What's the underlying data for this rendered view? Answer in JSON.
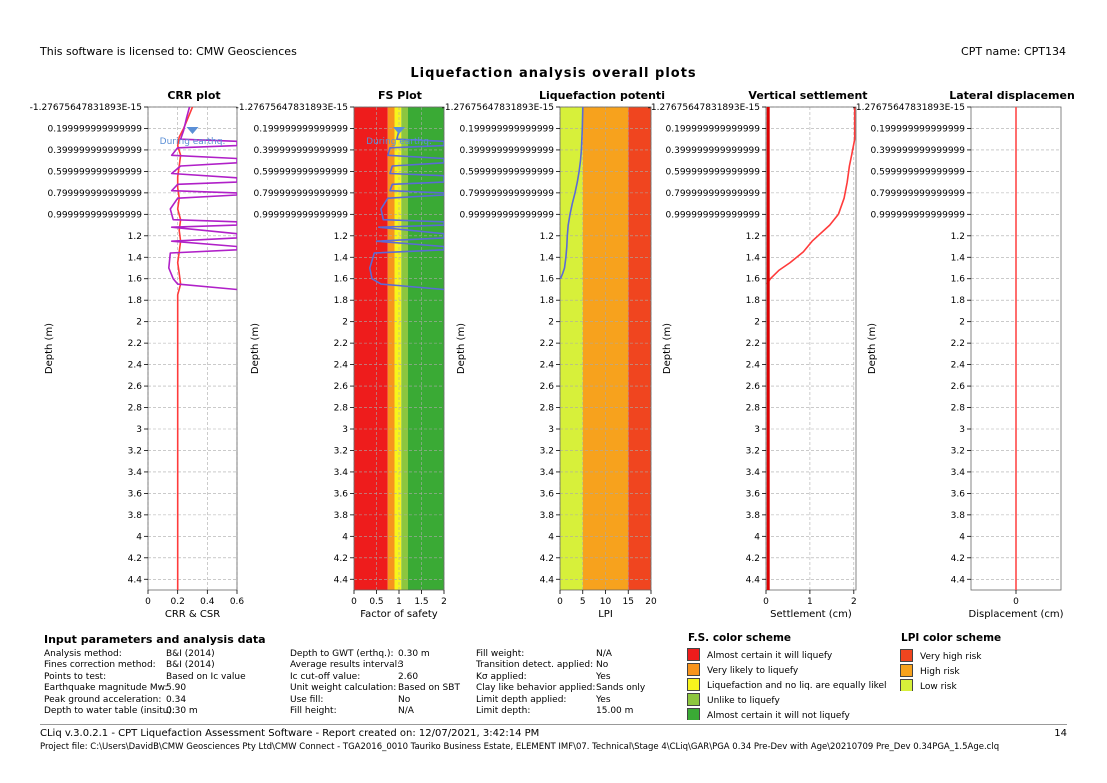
{
  "header": {
    "license_text": "This software is licensed to: CMW Geosciences",
    "cpt_name": "CPT name: CPT134"
  },
  "main_title": "Liquefaction analysis overall plots",
  "chart_data": [
    {
      "type": "line",
      "title": "CRR plot",
      "xlabel": "CRR & CSR",
      "ylabel": "Depth (m)",
      "xlim": [
        0,
        0.6
      ],
      "x_tick_labels": [
        "0",
        "0.2",
        "0.4",
        "0.6"
      ],
      "ylim": [
        0,
        4.5
      ],
      "y_tick_labels": [
        "-1.27675647831893E-15",
        "0.199999999999999",
        "0.399999999999999",
        "0.599999999999999",
        "0.799999999999999",
        "0.999999999999999",
        "1.2",
        "1.4",
        "1.6",
        "1.8",
        "2",
        "2.2",
        "2.4",
        "2.6",
        "2.8",
        "3",
        "3.2",
        "3.4",
        "3.6",
        "3.8",
        "4",
        "4.2",
        "4.4"
      ],
      "annotations": [
        {
          "text": "During earthq.",
          "x": 0.3,
          "y": 0.28
        }
      ],
      "series": [
        {
          "color": "#ff3b3b",
          "points": [
            [
              0.3,
              0.0
            ],
            [
              0.27,
              0.1
            ],
            [
              0.24,
              0.2
            ],
            [
              0.21,
              0.28
            ],
            [
              0.2,
              0.36
            ],
            [
              0.22,
              0.45
            ],
            [
              0.21,
              0.55
            ],
            [
              0.2,
              0.65
            ],
            [
              0.2,
              0.75
            ],
            [
              0.21,
              0.85
            ],
            [
              0.2,
              0.95
            ],
            [
              0.22,
              1.05
            ],
            [
              0.21,
              1.15
            ],
            [
              0.22,
              1.25
            ],
            [
              0.21,
              1.35
            ],
            [
              0.2,
              1.45
            ],
            [
              0.21,
              1.55
            ],
            [
              0.22,
              1.65
            ],
            [
              0.2,
              1.75
            ],
            [
              0.2,
              2.0
            ],
            [
              0.2,
              2.5
            ],
            [
              0.2,
              3.0
            ],
            [
              0.2,
              3.5
            ],
            [
              0.2,
              4.0
            ],
            [
              0.2,
              4.5
            ]
          ]
        },
        {
          "color": "#b020c8",
          "points": [
            [
              0.28,
              0.0
            ],
            [
              0.26,
              0.1
            ],
            [
              0.24,
              0.22
            ],
            [
              0.22,
              0.3
            ],
            [
              0.6,
              0.32
            ],
            [
              0.6,
              0.36
            ],
            [
              0.2,
              0.38
            ],
            [
              0.16,
              0.45
            ],
            [
              0.6,
              0.48
            ],
            [
              0.6,
              0.52
            ],
            [
              0.22,
              0.55
            ],
            [
              0.16,
              0.62
            ],
            [
              0.6,
              0.66
            ],
            [
              0.6,
              0.7
            ],
            [
              0.2,
              0.72
            ],
            [
              0.16,
              0.78
            ],
            [
              0.6,
              0.8
            ],
            [
              0.6,
              0.82
            ],
            [
              0.2,
              0.85
            ],
            [
              0.15,
              0.95
            ],
            [
              0.17,
              1.05
            ],
            [
              0.6,
              1.07
            ],
            [
              0.6,
              1.1
            ],
            [
              0.16,
              1.12
            ],
            [
              0.6,
              1.18
            ],
            [
              0.6,
              1.22
            ],
            [
              0.16,
              1.25
            ],
            [
              0.6,
              1.3
            ],
            [
              0.6,
              1.33
            ],
            [
              0.15,
              1.36
            ],
            [
              0.14,
              1.5
            ],
            [
              0.17,
              1.6
            ],
            [
              0.2,
              1.65
            ],
            [
              0.6,
              1.7
            ]
          ]
        }
      ]
    },
    {
      "type": "line",
      "title": "FS Plot",
      "xlabel": "Factor of safety",
      "ylabel": "Depth (m)",
      "xlim": [
        0,
        2
      ],
      "x_tick_labels": [
        "0",
        "0.5",
        "1",
        "1.5",
        "2"
      ],
      "ylim": [
        0,
        4.5
      ],
      "y_tick_labels": [
        "-1.27675647831893E-15",
        "0.199999999999999",
        "0.399999999999999",
        "0.599999999999999",
        "0.799999999999999",
        "0.999999999999999",
        "1.2",
        "1.4",
        "1.6",
        "1.8",
        "2",
        "2.2",
        "2.4",
        "2.6",
        "2.8",
        "3",
        "3.2",
        "3.4",
        "3.6",
        "3.8",
        "4",
        "4.2",
        "4.4"
      ],
      "background_bands": [
        {
          "from": 0,
          "to": 0.75,
          "color": "#ee1c1c"
        },
        {
          "from": 0.75,
          "to": 0.9,
          "color": "#f7941d"
        },
        {
          "from": 0.9,
          "to": 1.05,
          "color": "#f7f41d"
        },
        {
          "from": 1.05,
          "to": 1.2,
          "color": "#8dc63f"
        },
        {
          "from": 1.2,
          "to": 2.0,
          "color": "#3aaa35"
        }
      ],
      "annotations": [
        {
          "text": "During earthq.",
          "x": 1.0,
          "y": 0.28
        }
      ],
      "series": [
        {
          "color": "#5b6bd6",
          "points": [
            [
              1.0,
              0.22
            ],
            [
              0.95,
              0.3
            ],
            [
              2.0,
              0.32
            ],
            [
              2.0,
              0.36
            ],
            [
              0.8,
              0.38
            ],
            [
              0.75,
              0.45
            ],
            [
              2.0,
              0.48
            ],
            [
              2.0,
              0.52
            ],
            [
              0.85,
              0.55
            ],
            [
              0.8,
              0.62
            ],
            [
              2.0,
              0.64
            ],
            [
              2.0,
              0.7
            ],
            [
              0.85,
              0.72
            ],
            [
              0.8,
              0.78
            ],
            [
              2.0,
              0.8
            ],
            [
              2.0,
              0.82
            ],
            [
              0.75,
              0.85
            ],
            [
              0.6,
              0.95
            ],
            [
              0.65,
              1.05
            ],
            [
              2.0,
              1.07
            ],
            [
              2.0,
              1.1
            ],
            [
              0.55,
              1.12
            ],
            [
              2.0,
              1.18
            ],
            [
              2.0,
              1.22
            ],
            [
              0.5,
              1.25
            ],
            [
              2.0,
              1.3
            ],
            [
              2.0,
              1.33
            ],
            [
              0.45,
              1.36
            ],
            [
              0.35,
              1.5
            ],
            [
              0.4,
              1.6
            ],
            [
              0.6,
              1.65
            ],
            [
              2.0,
              1.7
            ]
          ]
        }
      ]
    },
    {
      "type": "line",
      "title": "Liquefaction potenti",
      "xlabel": "LPI",
      "ylabel": "Depth (m)",
      "xlim": [
        0,
        20
      ],
      "x_tick_labels": [
        "0",
        "5",
        "10",
        "15",
        "20"
      ],
      "ylim": [
        0,
        4.5
      ],
      "y_tick_labels": [
        "-1.27675647831893E-15",
        "0.199999999999999",
        "0.399999999999999",
        "0.599999999999999",
        "0.799999999999999",
        "0.999999999999999",
        "1.2",
        "1.4",
        "1.6",
        "1.8",
        "2",
        "2.2",
        "2.4",
        "2.6",
        "2.8",
        "3",
        "3.2",
        "3.4",
        "3.6",
        "3.8",
        "4",
        "4.2",
        "4.4"
      ],
      "background_bands": [
        {
          "from": 0,
          "to": 5,
          "color": "#d7f03a"
        },
        {
          "from": 5,
          "to": 15,
          "color": "#f7a21d"
        },
        {
          "from": 15,
          "to": 20,
          "color": "#f0451f"
        }
      ],
      "series": [
        {
          "color": "#5b6bd6",
          "points": [
            [
              5.0,
              0.0
            ],
            [
              4.9,
              0.2
            ],
            [
              4.7,
              0.4
            ],
            [
              4.5,
              0.5
            ],
            [
              4.2,
              0.6
            ],
            [
              3.8,
              0.7
            ],
            [
              3.3,
              0.8
            ],
            [
              2.7,
              0.9
            ],
            [
              2.2,
              1.0
            ],
            [
              1.8,
              1.1
            ],
            [
              1.6,
              1.2
            ],
            [
              1.5,
              1.3
            ],
            [
              1.3,
              1.4
            ],
            [
              1.0,
              1.5
            ],
            [
              0.6,
              1.55
            ],
            [
              0.1,
              1.6
            ]
          ]
        }
      ]
    },
    {
      "type": "line",
      "title": "Vertical settlement",
      "xlabel": "Settlement (cm)",
      "ylabel": "Depth (m)",
      "xlim": [
        0,
        2.05
      ],
      "x_tick_labels": [
        "0",
        "1",
        "2"
      ],
      "ylim": [
        0,
        4.5
      ],
      "y_tick_labels": [
        "-1.27675647831893E-15",
        "0.199999999999999",
        "0.399999999999999",
        "0.599999999999999",
        "0.799999999999999",
        "0.999999999999999",
        "1.2",
        "1.4",
        "1.6",
        "1.8",
        "2",
        "2.2",
        "2.4",
        "2.6",
        "2.8",
        "3",
        "3.2",
        "3.4",
        "3.6",
        "3.8",
        "4",
        "4.2",
        "4.4"
      ],
      "series": [
        {
          "color": "#ff3b3b",
          "points": [
            [
              2.02,
              0.0
            ],
            [
              2.02,
              0.3
            ],
            [
              1.95,
              0.45
            ],
            [
              1.9,
              0.55
            ],
            [
              1.85,
              0.7
            ],
            [
              1.78,
              0.85
            ],
            [
              1.65,
              1.0
            ],
            [
              1.45,
              1.1
            ],
            [
              1.05,
              1.25
            ],
            [
              0.85,
              1.35
            ],
            [
              0.55,
              1.45
            ],
            [
              0.3,
              1.52
            ],
            [
              0.1,
              1.6
            ],
            [
              0.02,
              1.65
            ]
          ]
        },
        {
          "color": "#dd0000",
          "points": [
            [
              0.05,
              0.0
            ],
            [
              0.05,
              4.5
            ]
          ]
        }
      ]
    },
    {
      "type": "line",
      "title": "Lateral displacemen",
      "xlabel": "Displacement (cm)",
      "ylabel": "Depth (m)",
      "xlim": [
        -1,
        1
      ],
      "x_tick_labels": [
        "0"
      ],
      "ylim": [
        0,
        4.5
      ],
      "y_tick_labels": [
        "-1.27675647831893E-15",
        "0.199999999999999",
        "0.399999999999999",
        "0.599999999999999",
        "0.799999999999999",
        "0.999999999999999",
        "1.2",
        "1.4",
        "1.6",
        "1.8",
        "2",
        "2.2",
        "2.4",
        "2.6",
        "2.8",
        "3",
        "3.2",
        "3.4",
        "3.6",
        "3.8",
        "4",
        "4.2",
        "4.4"
      ],
      "series": [
        {
          "color": "#ff4a4a",
          "points": [
            [
              0,
              0
            ],
            [
              0,
              4.5
            ]
          ]
        }
      ]
    }
  ],
  "input_params": {
    "title": "Input parameters and analysis data",
    "col1": [
      {
        "label": "Analysis method:",
        "value": "B&I (2014)"
      },
      {
        "label": "Fines correction method:",
        "value": "B&I (2014)"
      },
      {
        "label": "Points to test:",
        "value": "Based on Ic value"
      },
      {
        "label": "Earthquake magnitude Mw:",
        "value": "5.90"
      },
      {
        "label": "Peak ground acceleration:",
        "value": "0.34"
      },
      {
        "label": "Depth to water table (insitu):",
        "value": "0.30 m"
      }
    ],
    "col2": [
      {
        "label": "Depth to GWT (erthq.):",
        "value": "0.30 m"
      },
      {
        "label": "Average results interval:",
        "value": "3"
      },
      {
        "label": "Ic cut-off value:",
        "value": "2.60"
      },
      {
        "label": "Unit weight calculation:",
        "value": "Based on SBT"
      },
      {
        "label": "Use fill:",
        "value": "No"
      },
      {
        "label": "Fill height:",
        "value": "N/A"
      }
    ],
    "col3": [
      {
        "label": "Fill weight:",
        "value": "N/A"
      },
      {
        "label": "Transition detect. applied:",
        "value": "No"
      },
      {
        "label": "Kσ applied:",
        "value": "Yes"
      },
      {
        "label": "Clay like behavior applied:",
        "value": "Sands only"
      },
      {
        "label": "Limit depth applied:",
        "value": "Yes"
      },
      {
        "label": "Limit depth:",
        "value": "15.00 m"
      }
    ]
  },
  "fs_legend": {
    "title": "F.S. color scheme",
    "items": [
      {
        "label": "Almost certain it will liquefy",
        "color": "#ee1c1c"
      },
      {
        "label": "Very likely to liquefy",
        "color": "#f7941d"
      },
      {
        "label": "Liquefaction and no liq. are equally likely",
        "color": "#f7f41d"
      },
      {
        "label": "Unlike to liquefy",
        "color": "#8dc63f"
      },
      {
        "label": "Almost certain it will not liquefy",
        "color": "#3aaa35"
      }
    ]
  },
  "lpi_legend": {
    "title": "LPI color scheme",
    "items": [
      {
        "label": "Very high risk",
        "color": "#f0451f"
      },
      {
        "label": "High risk",
        "color": "#f7a21d"
      },
      {
        "label": "Low risk",
        "color": "#d7f03a"
      }
    ]
  },
  "footer": {
    "report_line": "CLiq v.3.0.2.1 - CPT Liquefaction Assessment Software - Report created on: 12/07/2021, 3:42:14 PM",
    "page_number": "14",
    "project_file": "Project file: C:\\Users\\DavidB\\CMW Geosciences Pty Ltd\\CMW Connect - TGA2016_0010 Tauriko Business Estate, ELEMENT IMF\\07. Technical\\Stage 4\\CLiq\\GAR\\PGA 0.34 Pre-Dev with Age\\20210709 Pre_Dev 0.34PGA_1.5Age.clq"
  }
}
